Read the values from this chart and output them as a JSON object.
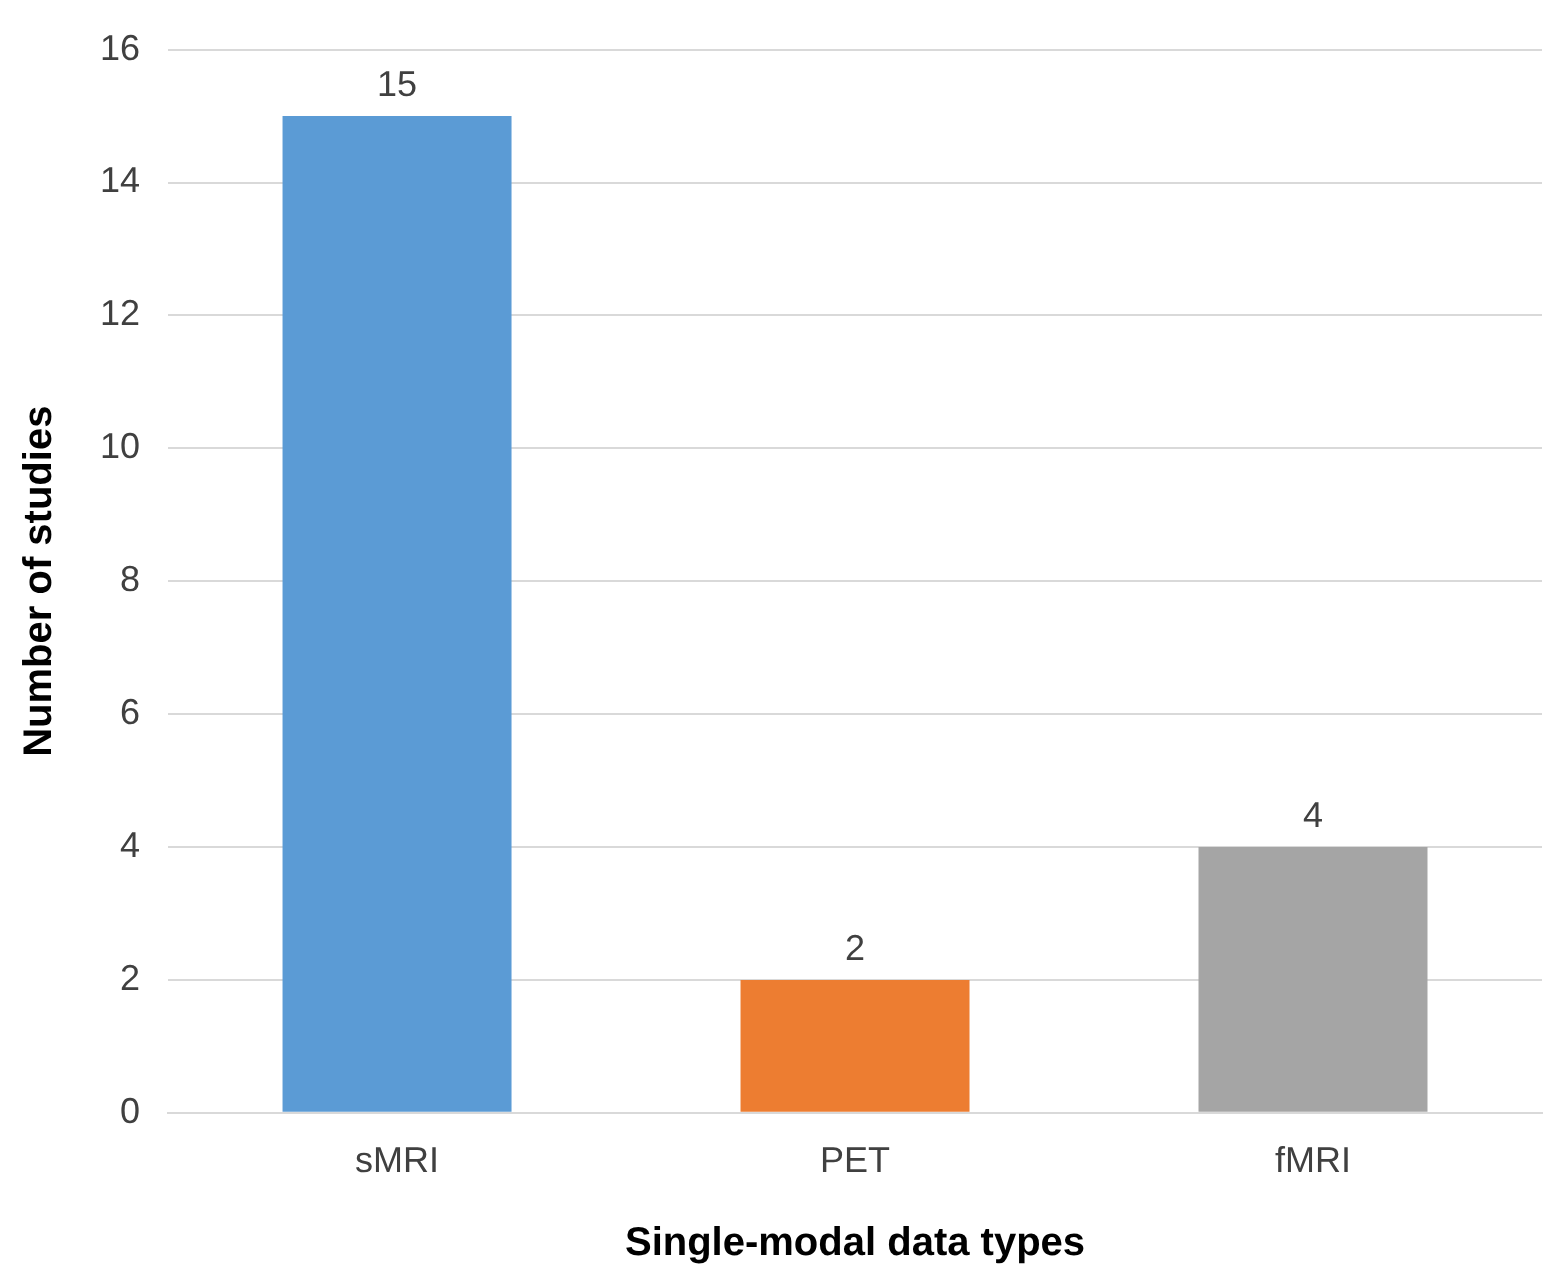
{
  "chart_data": {
    "type": "bar",
    "xlabel": "Single-modal data types",
    "ylabel": "Number of studies",
    "categories": [
      "sMRI",
      "PET",
      "fMRI"
    ],
    "values": [
      15,
      2,
      4
    ],
    "colors": [
      "#5b9bd5",
      "#ed7d31",
      "#a5a5a5"
    ],
    "ylim": [
      0,
      16
    ],
    "yticks": [
      0,
      2,
      4,
      6,
      8,
      10,
      12,
      14,
      16
    ],
    "grid": "y",
    "data_labels": true,
    "legend": false
  }
}
